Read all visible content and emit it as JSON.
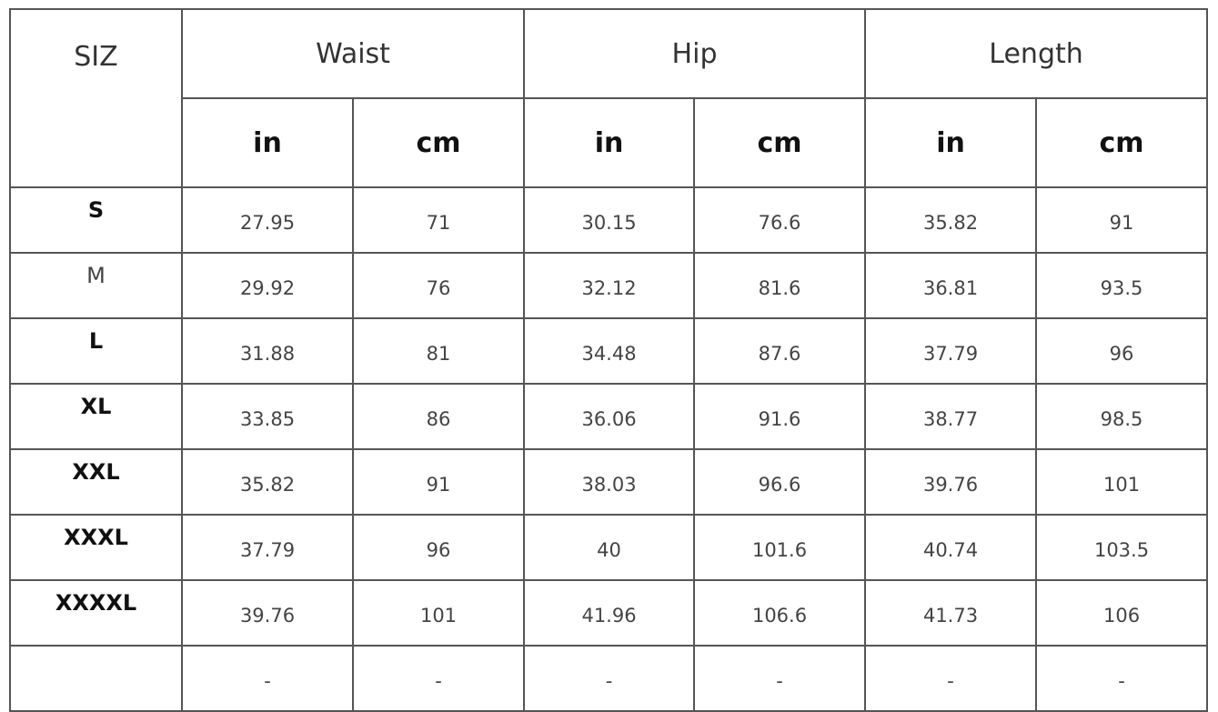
{
  "header": {
    "size_label": "SIZ",
    "groups": [
      "Waist",
      "Hip",
      "Length"
    ],
    "units": [
      "in",
      "cm",
      "in",
      "cm",
      "in",
      "cm"
    ]
  },
  "rows": [
    {
      "size": "S",
      "bold": true,
      "values": [
        "27.95",
        "71",
        "30.15",
        "76.6",
        "35.82",
        "91"
      ]
    },
    {
      "size": "M",
      "bold": false,
      "values": [
        "29.92",
        "76",
        "32.12",
        "81.6",
        "36.81",
        "93.5"
      ]
    },
    {
      "size": "L",
      "bold": true,
      "values": [
        "31.88",
        "81",
        "34.48",
        "87.6",
        "37.79",
        "96"
      ]
    },
    {
      "size": "XL",
      "bold": true,
      "values": [
        "33.85",
        "86",
        "36.06",
        "91.6",
        "38.77",
        "98.5"
      ]
    },
    {
      "size": "XXL",
      "bold": true,
      "values": [
        "35.82",
        "91",
        "38.03",
        "96.6",
        "39.76",
        "101"
      ]
    },
    {
      "size": "XXXL",
      "bold": true,
      "values": [
        "37.79",
        "96",
        "40",
        "101.6",
        "40.74",
        "103.5"
      ]
    },
    {
      "size": "XXXXL",
      "bold": true,
      "values": [
        "39.76",
        "101",
        "41.96",
        "106.6",
        "41.73",
        "106"
      ]
    },
    {
      "size": "",
      "bold": false,
      "values": [
        "-",
        "-",
        "-",
        "-",
        "-",
        "-"
      ]
    }
  ]
}
